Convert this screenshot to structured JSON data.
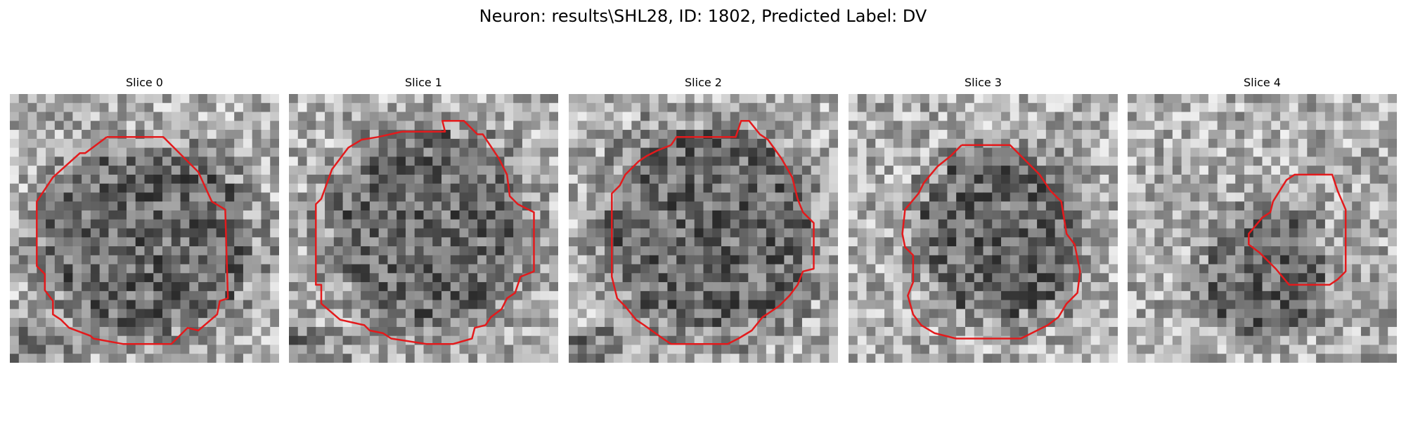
{
  "figure": {
    "title": "Neuron: results\\SHL28, ID: 1802, Predicted Label: DV"
  },
  "panels": [
    {
      "title": "Slice 0",
      "contour": [
        [
          0.36,
          0.16
        ],
        [
          0.57,
          0.16
        ],
        [
          0.7,
          0.29
        ],
        [
          0.75,
          0.4
        ],
        [
          0.8,
          0.43
        ],
        [
          0.81,
          0.76
        ],
        [
          0.78,
          0.77
        ],
        [
          0.77,
          0.82
        ],
        [
          0.7,
          0.88
        ],
        [
          0.66,
          0.87
        ],
        [
          0.6,
          0.93
        ],
        [
          0.51,
          0.93
        ],
        [
          0.42,
          0.93
        ],
        [
          0.31,
          0.91
        ],
        [
          0.3,
          0.9
        ],
        [
          0.22,
          0.87
        ],
        [
          0.19,
          0.84
        ],
        [
          0.16,
          0.82
        ],
        [
          0.16,
          0.77
        ],
        [
          0.13,
          0.73
        ],
        [
          0.13,
          0.67
        ],
        [
          0.1,
          0.64
        ],
        [
          0.1,
          0.4
        ],
        [
          0.16,
          0.31
        ],
        [
          0.26,
          0.22
        ],
        [
          0.28,
          0.22
        ],
        [
          0.36,
          0.16
        ]
      ],
      "center": [
        0.52,
        0.55
      ],
      "rx": 0.42,
      "ry": 0.38
    },
    {
      "title": "Slice 1",
      "contour": [
        [
          0.42,
          0.14
        ],
        [
          0.58,
          0.14
        ],
        [
          0.57,
          0.1
        ],
        [
          0.65,
          0.1
        ],
        [
          0.7,
          0.15
        ],
        [
          0.72,
          0.15
        ],
        [
          0.78,
          0.24
        ],
        [
          0.81,
          0.3
        ],
        [
          0.82,
          0.38
        ],
        [
          0.85,
          0.41
        ],
        [
          0.91,
          0.44
        ],
        [
          0.91,
          0.66
        ],
        [
          0.86,
          0.68
        ],
        [
          0.84,
          0.74
        ],
        [
          0.81,
          0.76
        ],
        [
          0.79,
          0.8
        ],
        [
          0.75,
          0.83
        ],
        [
          0.73,
          0.86
        ],
        [
          0.69,
          0.87
        ],
        [
          0.68,
          0.91
        ],
        [
          0.61,
          0.93
        ],
        [
          0.51,
          0.93
        ],
        [
          0.38,
          0.91
        ],
        [
          0.35,
          0.89
        ],
        [
          0.3,
          0.88
        ],
        [
          0.28,
          0.86
        ],
        [
          0.19,
          0.84
        ],
        [
          0.12,
          0.78
        ],
        [
          0.12,
          0.71
        ],
        [
          0.1,
          0.71
        ],
        [
          0.1,
          0.41
        ],
        [
          0.12,
          0.39
        ],
        [
          0.16,
          0.28
        ],
        [
          0.22,
          0.2
        ],
        [
          0.27,
          0.17
        ],
        [
          0.33,
          0.16
        ],
        [
          0.42,
          0.14
        ]
      ],
      "center": [
        0.52,
        0.5
      ],
      "rx": 0.4,
      "ry": 0.4
    },
    {
      "title": "Slice 2",
      "contour": [
        [
          0.38,
          0.19
        ],
        [
          0.4,
          0.16
        ],
        [
          0.62,
          0.16
        ],
        [
          0.64,
          0.1
        ],
        [
          0.67,
          0.1
        ],
        [
          0.71,
          0.15
        ],
        [
          0.74,
          0.17
        ],
        [
          0.79,
          0.24
        ],
        [
          0.83,
          0.31
        ],
        [
          0.85,
          0.39
        ],
        [
          0.87,
          0.44
        ],
        [
          0.91,
          0.48
        ],
        [
          0.91,
          0.65
        ],
        [
          0.87,
          0.66
        ],
        [
          0.85,
          0.71
        ],
        [
          0.82,
          0.75
        ],
        [
          0.78,
          0.79
        ],
        [
          0.72,
          0.83
        ],
        [
          0.68,
          0.88
        ],
        [
          0.63,
          0.91
        ],
        [
          0.59,
          0.93
        ],
        [
          0.38,
          0.93
        ],
        [
          0.35,
          0.91
        ],
        [
          0.28,
          0.86
        ],
        [
          0.25,
          0.84
        ],
        [
          0.21,
          0.79
        ],
        [
          0.18,
          0.76
        ],
        [
          0.16,
          0.68
        ],
        [
          0.16,
          0.37
        ],
        [
          0.19,
          0.34
        ],
        [
          0.21,
          0.3
        ],
        [
          0.26,
          0.25
        ],
        [
          0.29,
          0.23
        ],
        [
          0.33,
          0.21
        ],
        [
          0.38,
          0.19
        ]
      ],
      "center": [
        0.52,
        0.5
      ],
      "rx": 0.42,
      "ry": 0.42
    },
    {
      "title": "Slice 3",
      "contour": [
        [
          0.42,
          0.19
        ],
        [
          0.6,
          0.19
        ],
        [
          0.66,
          0.25
        ],
        [
          0.71,
          0.3
        ],
        [
          0.75,
          0.36
        ],
        [
          0.79,
          0.4
        ],
        [
          0.8,
          0.46
        ],
        [
          0.81,
          0.52
        ],
        [
          0.84,
          0.56
        ],
        [
          0.86,
          0.66
        ],
        [
          0.85,
          0.74
        ],
        [
          0.81,
          0.78
        ],
        [
          0.78,
          0.83
        ],
        [
          0.74,
          0.86
        ],
        [
          0.7,
          0.88
        ],
        [
          0.64,
          0.91
        ],
        [
          0.59,
          0.91
        ],
        [
          0.47,
          0.91
        ],
        [
          0.4,
          0.91
        ],
        [
          0.32,
          0.89
        ],
        [
          0.27,
          0.86
        ],
        [
          0.24,
          0.82
        ],
        [
          0.22,
          0.75
        ],
        [
          0.24,
          0.7
        ],
        [
          0.24,
          0.6
        ],
        [
          0.21,
          0.57
        ],
        [
          0.2,
          0.52
        ],
        [
          0.21,
          0.43
        ],
        [
          0.26,
          0.37
        ],
        [
          0.28,
          0.33
        ],
        [
          0.33,
          0.27
        ],
        [
          0.38,
          0.23
        ],
        [
          0.42,
          0.19
        ]
      ],
      "center": [
        0.57,
        0.52
      ],
      "rx": 0.34,
      "ry": 0.34
    },
    {
      "title": "Slice 4",
      "contour": [
        [
          0.54,
          0.4
        ],
        [
          0.59,
          0.32
        ],
        [
          0.62,
          0.3
        ],
        [
          0.76,
          0.3
        ],
        [
          0.78,
          0.36
        ],
        [
          0.81,
          0.43
        ],
        [
          0.81,
          0.66
        ],
        [
          0.78,
          0.69
        ],
        [
          0.75,
          0.71
        ],
        [
          0.6,
          0.71
        ],
        [
          0.55,
          0.65
        ],
        [
          0.49,
          0.59
        ],
        [
          0.45,
          0.56
        ],
        [
          0.45,
          0.52
        ],
        [
          0.5,
          0.46
        ],
        [
          0.53,
          0.44
        ],
        [
          0.54,
          0.4
        ]
      ],
      "center": [
        0.52,
        0.67
      ],
      "rx": 0.25,
      "ry": 0.26
    }
  ],
  "colors": {
    "contour": "#e31a1c",
    "background": "#ffffff"
  }
}
